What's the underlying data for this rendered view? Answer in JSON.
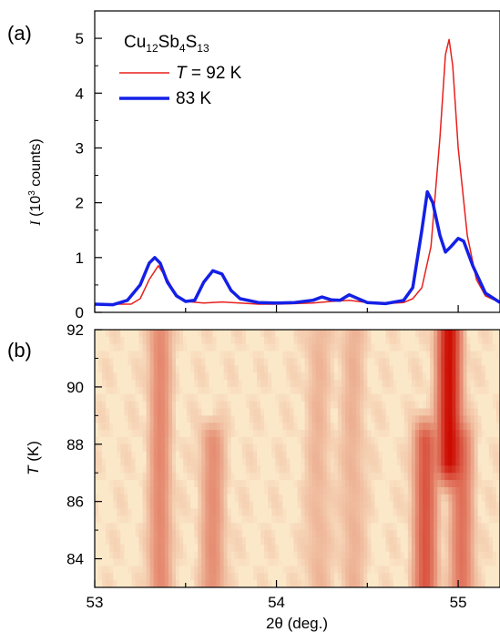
{
  "panel_a_label": "(a)",
  "panel_b_label": "(b)",
  "compound": {
    "parts": [
      [
        "Cu",
        "12"
      ],
      [
        "Sb",
        "4"
      ],
      [
        "S",
        "13"
      ]
    ]
  },
  "chart_data": [
    {
      "type": "line",
      "panel": "(a)",
      "ylabel": {
        "italic": "I",
        "pre": " (10",
        "sup": "3",
        "post": " counts)"
      },
      "xlim": [
        53.0,
        55.23
      ],
      "ylim": [
        0,
        5.5
      ],
      "yticks": [
        0,
        1,
        2,
        3,
        4,
        5
      ],
      "legend_placement": "top-left",
      "series": [
        {
          "name": "T = 92 K",
          "legend_italic": "T",
          "legend_rest": " = 92 K",
          "color": "#e8201c",
          "points": [
            [
              53.0,
              0.16
            ],
            [
              53.1,
              0.15
            ],
            [
              53.2,
              0.15
            ],
            [
              53.25,
              0.25
            ],
            [
              53.3,
              0.6
            ],
            [
              53.35,
              0.85
            ],
            [
              53.4,
              0.6
            ],
            [
              53.45,
              0.3
            ],
            [
              53.5,
              0.2
            ],
            [
              53.6,
              0.17
            ],
            [
              53.7,
              0.19
            ],
            [
              53.8,
              0.17
            ],
            [
              53.9,
              0.15
            ],
            [
              54.0,
              0.15
            ],
            [
              54.2,
              0.17
            ],
            [
              54.3,
              0.2
            ],
            [
              54.4,
              0.22
            ],
            [
              54.5,
              0.18
            ],
            [
              54.6,
              0.16
            ],
            [
              54.7,
              0.18
            ],
            [
              54.75,
              0.25
            ],
            [
              54.8,
              0.45
            ],
            [
              54.85,
              1.2
            ],
            [
              54.9,
              3.2
            ],
            [
              54.93,
              4.7
            ],
            [
              54.95,
              4.98
            ],
            [
              54.97,
              4.5
            ],
            [
              55.0,
              3.0
            ],
            [
              55.05,
              1.4
            ],
            [
              55.1,
              0.6
            ],
            [
              55.15,
              0.3
            ],
            [
              55.23,
              0.18
            ]
          ]
        },
        {
          "name": "83 K",
          "legend_italic": "",
          "legend_rest": "83 K",
          "color": "#1420e6",
          "points": [
            [
              53.0,
              0.15
            ],
            [
              53.1,
              0.14
            ],
            [
              53.18,
              0.22
            ],
            [
              53.25,
              0.5
            ],
            [
              53.3,
              0.9
            ],
            [
              53.33,
              1.0
            ],
            [
              53.36,
              0.9
            ],
            [
              53.4,
              0.55
            ],
            [
              53.45,
              0.3
            ],
            [
              53.5,
              0.2
            ],
            [
              53.55,
              0.22
            ],
            [
              53.6,
              0.55
            ],
            [
              53.65,
              0.76
            ],
            [
              53.7,
              0.7
            ],
            [
              53.75,
              0.4
            ],
            [
              53.8,
              0.25
            ],
            [
              53.9,
              0.18
            ],
            [
              54.0,
              0.17
            ],
            [
              54.1,
              0.18
            ],
            [
              54.2,
              0.22
            ],
            [
              54.25,
              0.28
            ],
            [
              54.3,
              0.23
            ],
            [
              54.35,
              0.22
            ],
            [
              54.4,
              0.32
            ],
            [
              54.45,
              0.25
            ],
            [
              54.5,
              0.18
            ],
            [
              54.6,
              0.16
            ],
            [
              54.7,
              0.22
            ],
            [
              54.75,
              0.45
            ],
            [
              54.8,
              1.5
            ],
            [
              54.83,
              2.2
            ],
            [
              54.86,
              2.0
            ],
            [
              54.9,
              1.4
            ],
            [
              54.93,
              1.1
            ],
            [
              54.96,
              1.2
            ],
            [
              55.0,
              1.35
            ],
            [
              55.03,
              1.3
            ],
            [
              55.08,
              0.85
            ],
            [
              55.15,
              0.35
            ],
            [
              55.23,
              0.18
            ]
          ]
        }
      ]
    },
    {
      "type": "heatmap",
      "panel": "(b)",
      "xlabel": "2θ (deg.)",
      "ylabel": {
        "italic": "T",
        "rest": " (K)"
      },
      "xlim": [
        53.0,
        55.23
      ],
      "ylim": [
        83.0,
        92.0
      ],
      "xticks": [
        53,
        54,
        55
      ],
      "yticks": [
        84,
        86,
        88,
        90,
        92
      ],
      "colormap": {
        "low": "#fbe8c9",
        "mid": "#e89a7e",
        "high": "#cc0a00"
      },
      "intensity_max": 5.0,
      "peaks": [
        {
          "center": 53.36,
          "width": 0.05,
          "amplitude": 0.9,
          "t_range": [
            83.0,
            92.0
          ]
        },
        {
          "center": 53.65,
          "width": 0.055,
          "amplitude": 0.75,
          "t_range": [
            83.0,
            88.0
          ]
        },
        {
          "center": 54.23,
          "width": 0.06,
          "amplitude": 0.25,
          "t_range": [
            83.0,
            92.0
          ]
        },
        {
          "center": 54.42,
          "width": 0.06,
          "amplitude": 0.28,
          "t_range": [
            83.0,
            92.0
          ]
        },
        {
          "center": 54.95,
          "width": 0.05,
          "amplitude": 4.9,
          "t_range": [
            87.5,
            92.0
          ]
        },
        {
          "center": 54.82,
          "width": 0.05,
          "amplitude": 2.2,
          "t_range": [
            83.0,
            88.0
          ]
        },
        {
          "center": 55.02,
          "width": 0.05,
          "amplitude": 1.4,
          "t_range": [
            83.0,
            88.0
          ]
        }
      ]
    }
  ]
}
